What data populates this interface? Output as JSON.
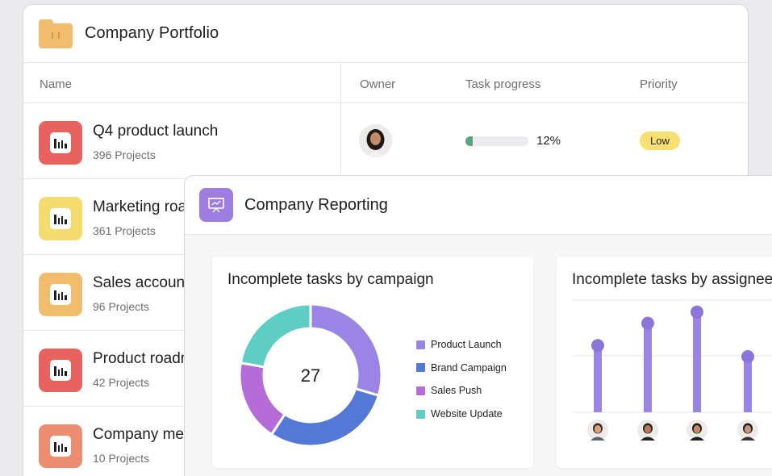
{
  "portfolio": {
    "title": "Company Portfolio",
    "columns": {
      "name": "Name",
      "owner": "Owner",
      "progress": "Task progress",
      "priority": "Priority"
    },
    "rows": [
      {
        "name": "Q4 product launch",
        "sub": "396 Projects",
        "color": "#e8625f"
      },
      {
        "name": "Marketing roadmap",
        "sub": "361 Projects",
        "color": "#f5dc6e"
      },
      {
        "name": "Sales accounts",
        "sub": "96 Projects",
        "color": "#f1bd6c"
      },
      {
        "name": "Product roadmap",
        "sub": "42 Projects",
        "color": "#e8625f"
      },
      {
        "name": "Company meetings",
        "sub": "10 Projects",
        "color": "#ec8d71"
      }
    ],
    "first_row": {
      "progress_pct": 12,
      "progress_text": "12%",
      "priority": "Low"
    }
  },
  "reporting": {
    "title": "Company Reporting",
    "card1_title": "Incomplete tasks by campaign",
    "card2_title": "Incomplete tasks by assignee",
    "donut_total": "27",
    "legend": [
      {
        "label": "Product Launch",
        "color": "#9a85e6"
      },
      {
        "label": "Brand Campaign",
        "color": "#5478d6"
      },
      {
        "label": "Sales Push",
        "color": "#b66cd8"
      },
      {
        "label": "Website Update",
        "color": "#5ecdc3"
      }
    ]
  },
  "chart_data": [
    {
      "type": "pie",
      "title": "Incomplete tasks by campaign",
      "center_label": "27",
      "categories": [
        "Product Launch",
        "Brand Campaign",
        "Sales Push",
        "Website Update"
      ],
      "values": [
        8,
        8,
        5,
        6
      ]
    },
    {
      "type": "bar",
      "title": "Incomplete tasks by assignee",
      "categories": [
        "Assignee 1",
        "Assignee 2",
        "Assignee 3",
        "Assignee 4"
      ],
      "values": [
        6,
        8,
        9,
        5
      ],
      "ylim": [
        0,
        10
      ]
    }
  ]
}
